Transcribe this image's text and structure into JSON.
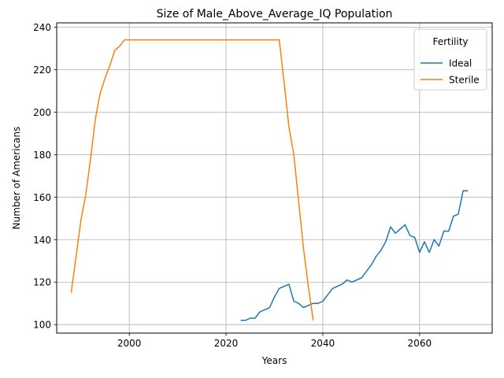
{
  "chart_data": {
    "type": "line",
    "title": "Size of Male_Above_Average_IQ Population",
    "xlabel": "Years",
    "ylabel": "Number of Americans",
    "xlim": [
      1985,
      2075
    ],
    "ylim": [
      96,
      242
    ],
    "xticks": [
      2000,
      2020,
      2040,
      2060
    ],
    "yticks": [
      100,
      120,
      140,
      160,
      180,
      200,
      220,
      240
    ],
    "grid": true,
    "legend": {
      "title": "Fertility",
      "placement": "top-right"
    },
    "series": [
      {
        "name": "Ideal",
        "color": "#1f77b4",
        "x": [
          2023,
          2024,
          2025,
          2026,
          2027,
          2028,
          2029,
          2030,
          2031,
          2032,
          2033,
          2034,
          2035,
          2036,
          2037,
          2038,
          2039,
          2040,
          2041,
          2042,
          2043,
          2044,
          2045,
          2046,
          2047,
          2048,
          2049,
          2050,
          2051,
          2052,
          2053,
          2054,
          2055,
          2056,
          2057,
          2058,
          2059,
          2060,
          2061,
          2062,
          2063,
          2064,
          2065,
          2066,
          2067,
          2068,
          2069,
          2070
        ],
        "y": [
          102,
          102,
          103,
          103,
          106,
          107,
          108,
          113,
          117,
          118,
          119,
          111,
          110,
          108,
          109,
          110,
          110,
          111,
          114,
          117,
          118,
          119,
          121,
          120,
          121,
          122,
          125,
          128,
          132,
          135,
          139,
          146,
          143,
          145,
          147,
          142,
          141,
          134,
          139,
          134,
          140,
          137,
          144,
          144,
          151,
          152,
          163,
          163
        ]
      },
      {
        "name": "Sterile",
        "color": "#ff7f0e",
        "x": [
          1988,
          1989,
          1990,
          1991,
          1992,
          1993,
          1994,
          1995,
          1996,
          1997,
          1998,
          1999,
          2000,
          2005,
          2010,
          2015,
          2020,
          2025,
          2030,
          2031,
          2032,
          2033,
          2034,
          2035,
          2036,
          2037,
          2038
        ],
        "y": [
          115,
          132,
          149,
          161,
          178,
          197,
          209,
          216,
          222,
          229,
          231,
          234,
          234,
          234,
          234,
          234,
          234,
          234,
          234,
          234,
          214,
          193,
          180,
          158,
          136,
          118,
          102
        ]
      }
    ]
  }
}
